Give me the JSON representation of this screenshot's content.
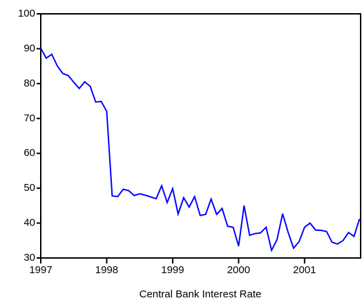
{
  "chart_data": {
    "type": "line",
    "x_label": "Central Bank Interest Rate",
    "x": [
      1997.0,
      1997.083,
      1997.167,
      1997.25,
      1997.333,
      1997.417,
      1997.5,
      1997.583,
      1997.667,
      1997.75,
      1997.833,
      1997.917,
      1998.0,
      1998.083,
      1998.167,
      1998.25,
      1998.333,
      1998.417,
      1998.5,
      1998.583,
      1998.667,
      1998.75,
      1998.833,
      1998.917,
      1999.0,
      1999.083,
      1999.167,
      1999.25,
      1999.333,
      1999.417,
      1999.5,
      1999.583,
      1999.667,
      1999.75,
      1999.833,
      1999.917,
      2000.0,
      2000.083,
      2000.167,
      2000.25,
      2000.333,
      2000.417,
      2000.5,
      2000.583,
      2000.667,
      2000.75,
      2000.833,
      2000.917,
      2001.0,
      2001.083,
      2001.167,
      2001.25,
      2001.333,
      2001.417,
      2001.5,
      2001.583,
      2001.667,
      2001.75,
      2001.833
    ],
    "series": [
      {
        "color": "#0000ff",
        "values": [
          90.1,
          87.3,
          88.4,
          85.1,
          82.9,
          82.3,
          80.4,
          78.6,
          80.5,
          79.2,
          74.7,
          74.9,
          72.0,
          47.8,
          47.6,
          49.7,
          49.3,
          47.9,
          48.4,
          48.0,
          47.5,
          47.0,
          50.7,
          45.9,
          49.9,
          42.6,
          47.3,
          44.6,
          47.6,
          42.2,
          42.5,
          46.9,
          42.5,
          44.2,
          39.1,
          38.8,
          33.4,
          45.0,
          36.5,
          37.0,
          37.2,
          38.8,
          32.2,
          35.3,
          42.7,
          37.4,
          32.8,
          34.7,
          38.8,
          40.0,
          38.0,
          37.9,
          37.6,
          34.5,
          34.0,
          35.0,
          37.3,
          36.2,
          41.2
        ]
      }
    ],
    "xlim": [
      1997,
      2001.85
    ],
    "ylim": [
      30,
      100
    ],
    "xticks": [
      1997,
      1998,
      1999,
      2000,
      2001
    ],
    "yticks": [
      30,
      40,
      50,
      60,
      70,
      80,
      90,
      100
    ]
  }
}
